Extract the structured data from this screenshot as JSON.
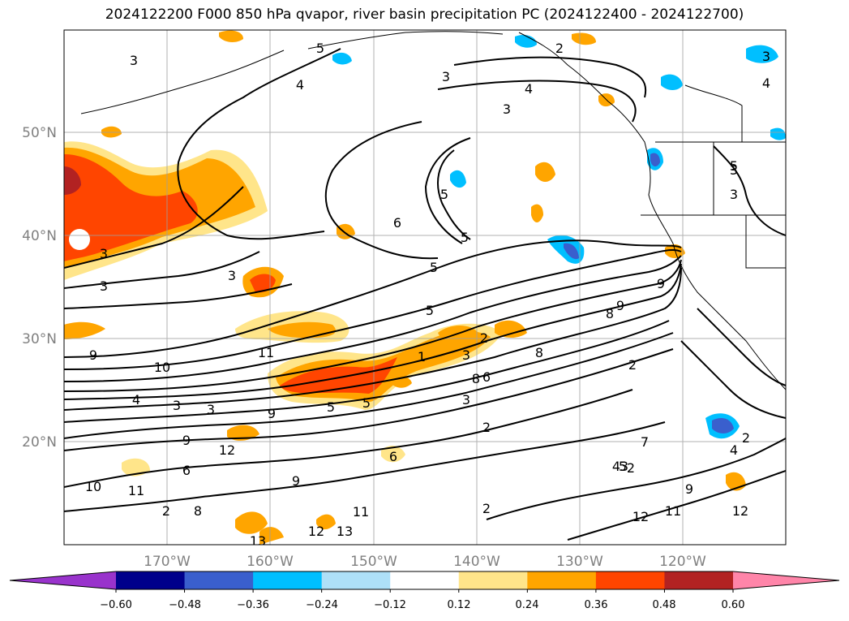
{
  "title": "2024122200 F000 850 hPa qvapor, river basin precipitation PC (2024122400 - 2024122700)",
  "map": {
    "lat_labels": [
      "50°N",
      "40°N",
      "30°N",
      "20°N"
    ],
    "lon_labels": [
      "170°W",
      "160°W",
      "150°W",
      "140°W",
      "130°W",
      "120°W"
    ],
    "graticule": true,
    "contour_labels": [
      "3",
      "4",
      "5",
      "2",
      "3",
      "4",
      "3",
      "4",
      "5",
      "3",
      "6",
      "5",
      "3",
      "5",
      "5",
      "3",
      "3",
      "9",
      "8",
      "9",
      "3",
      "5",
      "1",
      "2",
      "3",
      "8",
      "6",
      "2",
      "10",
      "11",
      "9",
      "4",
      "5",
      "3",
      "3",
      "5",
      "9",
      "7",
      "8",
      "2",
      "4",
      "4",
      "3",
      "9",
      "8",
      "2",
      "12",
      "11",
      "13",
      "10",
      "11",
      "12",
      "9",
      "6",
      "2",
      "6",
      "9",
      "12",
      "13",
      "11",
      "2",
      "12",
      "5",
      "3",
      "2",
      "3"
    ]
  },
  "colorbar": {
    "tick_labels": [
      "−0.60",
      "−0.48",
      "−0.36",
      "−0.24",
      "−0.12",
      "0.12",
      "0.24",
      "0.36",
      "0.48",
      "0.60"
    ],
    "bin_colors": [
      "#9933cc",
      "#00008b",
      "#3a5fcd",
      "#00bfff",
      "#aee0f8",
      "#ffffff",
      "#ffe58a",
      "#ffa500",
      "#ff4500",
      "#b22222",
      "#ff85a9"
    ]
  }
}
